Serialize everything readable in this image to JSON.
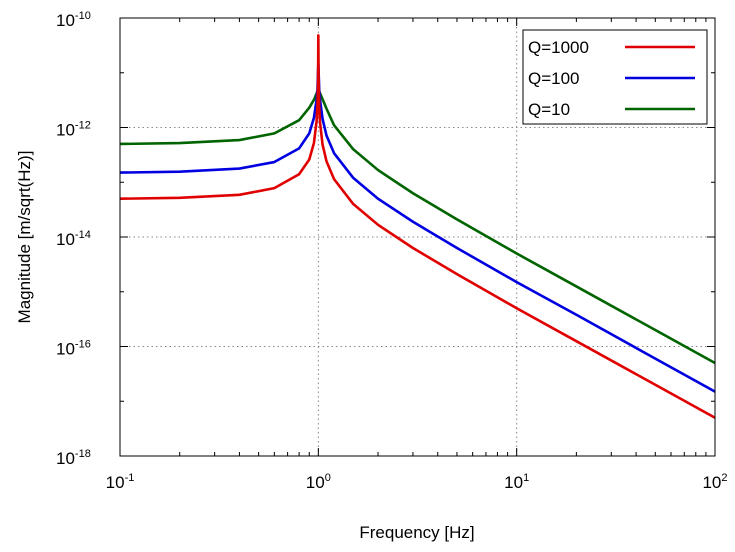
{
  "chart_data": {
    "type": "line",
    "title": "",
    "xlabel": "Frequency [Hz]",
    "ylabel": "Magnitude [m/sqrt(Hz)]",
    "x_scale": "log",
    "y_scale": "log",
    "xlim": [
      0.1,
      100
    ],
    "ylim": [
      1e-18,
      1e-10
    ],
    "x_ticks": [
      {
        "base": "10",
        "exp": "-1",
        "value": 0.1
      },
      {
        "base": "10",
        "exp": "0",
        "value": 1
      },
      {
        "base": "10",
        "exp": "1",
        "value": 10
      },
      {
        "base": "10",
        "exp": "2",
        "value": 100
      }
    ],
    "y_ticks": [
      {
        "base": "10",
        "exp": "-18",
        "value": 1e-18
      },
      {
        "base": "10",
        "exp": "-16",
        "value": 1e-16
      },
      {
        "base": "10",
        "exp": "-14",
        "value": 1e-14
      },
      {
        "base": "10",
        "exp": "-12",
        "value": 1e-12
      },
      {
        "base": "10",
        "exp": "-10",
        "value": 1e-10
      }
    ],
    "grid": true,
    "legend_position": "top-right",
    "series": [
      {
        "name": "Q=1000",
        "color": "#e00000",
        "points": [
          [
            0.1,
            5e-14
          ],
          [
            0.2,
            5.2e-14
          ],
          [
            0.4,
            5.9e-14
          ],
          [
            0.6,
            7.8e-14
          ],
          [
            0.8,
            1.4e-13
          ],
          [
            0.9,
            2.6e-13
          ],
          [
            0.95,
            5.2e-13
          ],
          [
            0.98,
            1.3e-12
          ],
          [
            0.99,
            2.5e-12
          ],
          [
            0.997,
            8e-12
          ],
          [
            1.0,
            4.8e-11
          ],
          [
            1.003,
            8e-12
          ],
          [
            1.01,
            2.5e-12
          ],
          [
            1.02,
            1.24e-12
          ],
          [
            1.05,
            4.9e-13
          ],
          [
            1.1,
            2.4e-13
          ],
          [
            1.2,
            1.14e-13
          ],
          [
            1.5,
            4e-14
          ],
          [
            2,
            1.67e-14
          ],
          [
            3,
            6.3e-15
          ],
          [
            5,
            2.1e-15
          ],
          [
            10,
            5e-16
          ],
          [
            20,
            1.25e-16
          ],
          [
            50,
            2e-17
          ],
          [
            100,
            5e-18
          ]
        ]
      },
      {
        "name": "Q=100",
        "color": "#0000e0",
        "points": [
          [
            0.1,
            1.5e-13
          ],
          [
            0.2,
            1.56e-13
          ],
          [
            0.4,
            1.78e-13
          ],
          [
            0.6,
            2.34e-13
          ],
          [
            0.8,
            4.15e-13
          ],
          [
            0.9,
            7.8e-13
          ],
          [
            0.95,
            1.5e-12
          ],
          [
            0.98,
            3.2e-12
          ],
          [
            0.99,
            5e-12
          ],
          [
            1.0,
            1.5e-11
          ],
          [
            1.01,
            5e-12
          ],
          [
            1.02,
            3.2e-12
          ],
          [
            1.05,
            1.44e-12
          ],
          [
            1.1,
            7.1e-13
          ],
          [
            1.2,
            3.4e-13
          ],
          [
            1.5,
            1.2e-13
          ],
          [
            2,
            5e-14
          ],
          [
            3,
            1.9e-14
          ],
          [
            5,
            6.3e-15
          ],
          [
            10,
            1.5e-15
          ],
          [
            20,
            3.8e-16
          ],
          [
            50,
            6e-17
          ],
          [
            100,
            1.5e-17
          ]
        ]
      },
      {
        "name": "Q=10",
        "color": "#006400",
        "points": [
          [
            0.1,
            5e-13
          ],
          [
            0.2,
            5.2e-13
          ],
          [
            0.4,
            5.9e-13
          ],
          [
            0.6,
            7.8e-13
          ],
          [
            0.8,
            1.36e-12
          ],
          [
            0.9,
            2.3e-12
          ],
          [
            0.95,
            3.2e-12
          ],
          [
            1.0,
            5e-12
          ],
          [
            1.05,
            3.3e-12
          ],
          [
            1.1,
            2.2e-12
          ],
          [
            1.2,
            1.1e-12
          ],
          [
            1.5,
            4e-13
          ],
          [
            2,
            1.67e-13
          ],
          [
            3,
            6.3e-14
          ],
          [
            5,
            2.1e-14
          ],
          [
            10,
            5e-15
          ],
          [
            20,
            1.25e-15
          ],
          [
            50,
            2e-16
          ],
          [
            100,
            5e-17
          ]
        ]
      }
    ]
  }
}
